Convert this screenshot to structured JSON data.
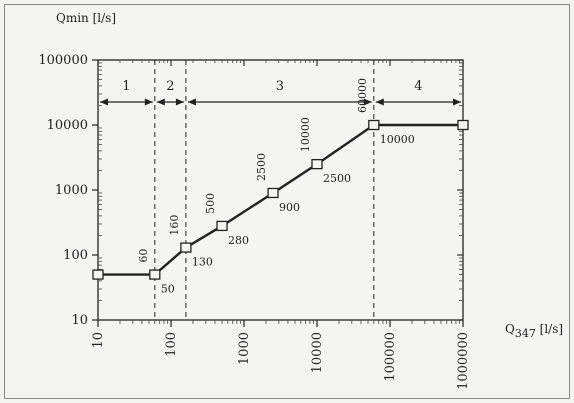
{
  "chart_data": {
    "type": "line",
    "title": "",
    "xlabel": "Q",
    "xlabel_sub": "347",
    "xlabel_unit": "[l/s]",
    "ylabel": "Qmin [l/s]",
    "x_scale": "log",
    "y_scale": "log",
    "xlim": [
      10,
      1000000
    ],
    "ylim": [
      10,
      100000
    ],
    "x_ticks": [
      "10",
      "100",
      "1000",
      "10000",
      "100000",
      "1000000"
    ],
    "y_ticks": [
      "10",
      "100",
      "1000",
      "10000",
      "100000"
    ],
    "grid": false,
    "series": [
      {
        "x": [
          10,
          60,
          160,
          500,
          2500,
          10000,
          60000,
          1000000
        ],
        "y": [
          50,
          50,
          130,
          280,
          900,
          2500,
          10000,
          10000
        ]
      }
    ],
    "x_annotations": [
      "60",
      "160",
      "500",
      "2500",
      "10000",
      "60000"
    ],
    "y_annotations": [
      "50",
      "130",
      "280",
      "900",
      "2500",
      "10000"
    ],
    "regions": [
      {
        "label": "1",
        "from": 10,
        "to": 60
      },
      {
        "label": "2",
        "from": 60,
        "to": 160
      },
      {
        "label": "3",
        "from": 160,
        "to": 60000
      },
      {
        "label": "4",
        "from": 60000,
        "to": 1000000
      }
    ],
    "dividers": [
      60,
      160,
      60000
    ]
  }
}
